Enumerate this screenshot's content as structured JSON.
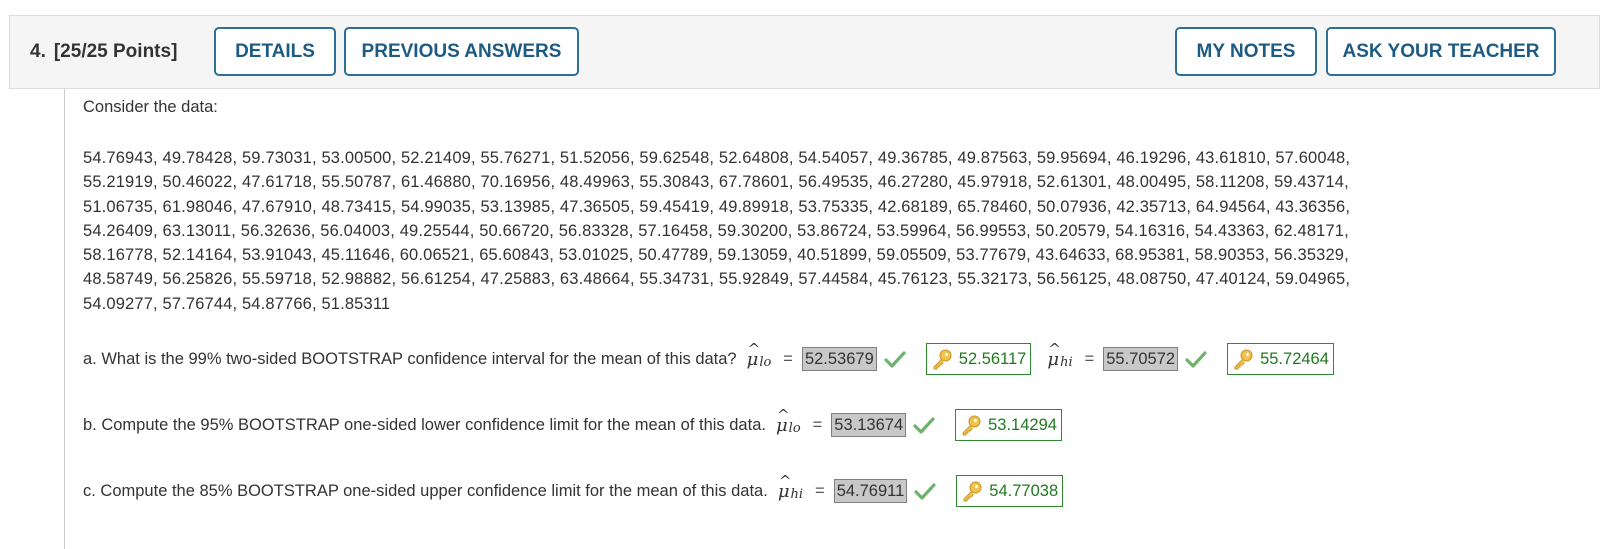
{
  "header": {
    "question_number": "4.",
    "points": "[25/25 Points]",
    "buttons": {
      "details": "DETAILS",
      "previous_answers": "PREVIOUS ANSWERS",
      "my_notes": "MY NOTES",
      "ask_teacher": "ASK YOUR TEACHER"
    }
  },
  "prompt": "Consider the data:",
  "data_lines": [
    "54.76943, 49.78428, 59.73031, 53.00500, 52.21409, 55.76271, 51.52056, 59.62548, 52.64808, 54.54057, 49.36785, 49.87563, 59.95694, 46.19296, 43.61810, 57.60048,",
    "55.21919, 50.46022, 47.61718, 55.50787, 61.46880, 70.16956, 48.49963, 55.30843, 67.78601, 56.49535, 46.27280, 45.97918, 52.61301, 48.00495, 58.11208, 59.43714,",
    "51.06735, 61.98046, 47.67910, 48.73415, 54.99035, 53.13985, 47.36505, 59.45419, 49.89918, 53.75335, 42.68189, 65.78460, 50.07936, 42.35713, 64.94564, 43.36356,",
    "54.26409, 63.13011, 56.32636, 56.04003, 49.25544, 50.66720, 56.83328, 57.16458, 59.30200, 53.86724, 53.59964, 56.99553, 50.20579, 54.16316, 54.43363, 62.48171,",
    "58.16778, 52.14164, 53.91043, 45.11646, 60.06521, 65.60843, 53.01025, 50.47789, 59.13059, 40.51899, 59.05509, 53.77679, 43.64633, 68.95381, 58.90353, 56.35329,",
    "48.58749, 56.25826, 55.59718, 52.98882, 56.61254, 47.25883, 63.48664, 55.34731, 55.92849, 57.44584, 45.76123, 55.32173, 56.56125, 48.08750, 47.40124, 59.04965,",
    "54.09277, 57.76744, 54.87766, 51.85311"
  ],
  "parts": {
    "a": {
      "text": "a. What is the 99% two-sided BOOTSTRAP confidence interval for the mean of this data?",
      "mu_symbol": "μ",
      "hat": "^",
      "lo_sub": "lo",
      "hi_sub": "hi",
      "eq": "=",
      "lo_answer": "52.53679",
      "lo_key": "52.56117",
      "hi_answer": "55.70572",
      "hi_key": "55.72464"
    },
    "b": {
      "text": "b. Compute the 95% BOOTSTRAP one-sided lower confidence limit for the mean of this data.",
      "mu_symbol": "μ",
      "hat": "^",
      "sub": "lo",
      "eq": "=",
      "answer": "53.13674",
      "key": "53.14294"
    },
    "c": {
      "text": "c. Compute the 85% BOOTSTRAP one-sided upper confidence limit for the mean of this data.",
      "mu_symbol": "μ",
      "hat": "^",
      "sub": "hi",
      "eq": "=",
      "answer": "54.76911",
      "key": "54.77038"
    }
  },
  "colors": {
    "button_border": "#2e6f97",
    "button_text": "#1e5b84",
    "correct_green": "#1f7a1f",
    "answer_box_bg": "#c8c8c8"
  }
}
